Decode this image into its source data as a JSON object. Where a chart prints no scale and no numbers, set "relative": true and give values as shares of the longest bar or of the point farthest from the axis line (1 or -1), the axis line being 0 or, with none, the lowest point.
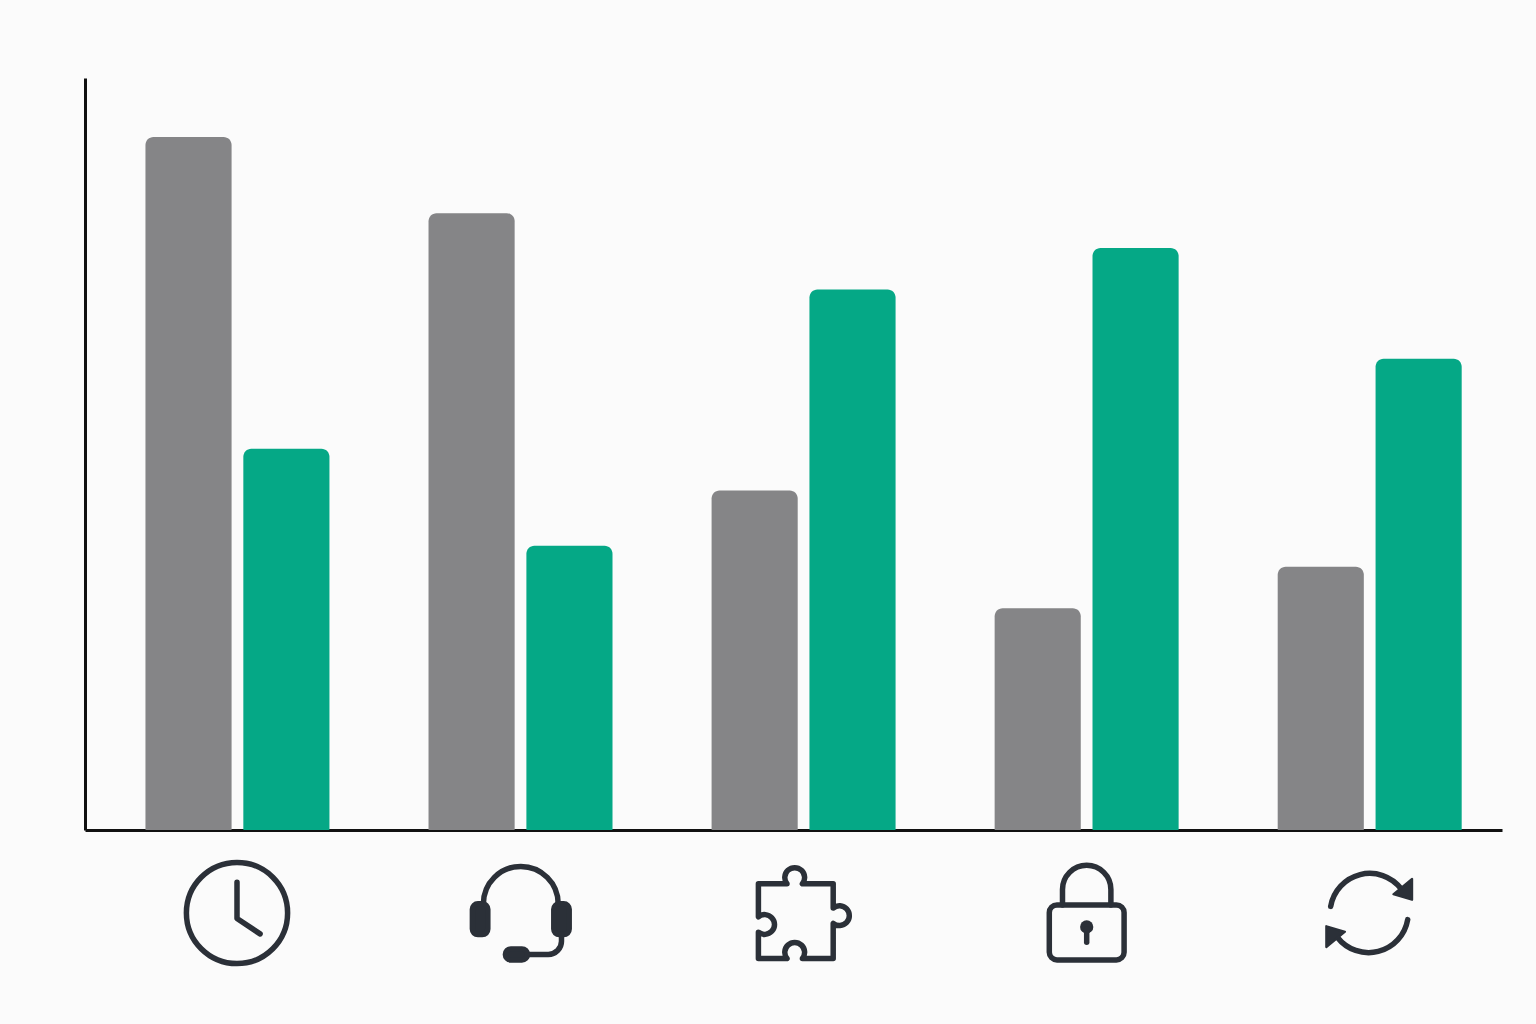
{
  "chart_data": {
    "type": "bar",
    "relative": true,
    "categories": [
      null,
      null,
      null,
      null,
      null
    ],
    "series": [
      {
        "color": "#858587",
        "values": [
          1,
          0.89,
          0.49,
          0.32,
          0.38
        ]
      },
      {
        "color": "#05a886",
        "values": [
          0.55,
          0.41,
          0.78,
          0.84,
          0.68
        ]
      }
    ]
  }
}
